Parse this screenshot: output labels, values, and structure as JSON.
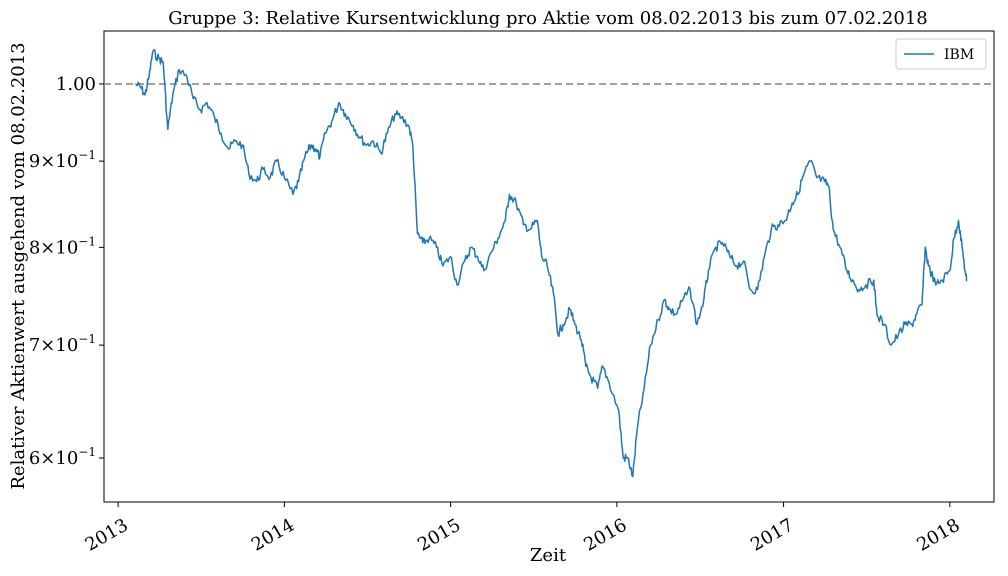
{
  "chart_data": {
    "type": "line",
    "title": "Gruppe 3: Relative Kursentwicklung pro Aktie vom 08.02.2013 bis zum 07.02.2018",
    "xlabel": "Zeit",
    "ylabel": "Relativer Aktienwert ausgehend vom 08.02.2013",
    "yscale": "log",
    "ylim": [
      0.565,
      1.075
    ],
    "xlim": [
      "2012-12-01",
      "2018-04-08"
    ],
    "x_ticks": [
      "2013",
      "2014",
      "2015",
      "2016",
      "2017",
      "2018"
    ],
    "y_ticks": [
      {
        "value": 0.6,
        "label": "6×10",
        "exp": "−1"
      },
      {
        "value": 0.7,
        "label": "7×10",
        "exp": "−1"
      },
      {
        "value": 0.8,
        "label": "8×10",
        "exp": "−1"
      },
      {
        "value": 0.9,
        "label": "9×10",
        "exp": "−1"
      },
      {
        "value": 1.0,
        "label": "1.00",
        "exp": ""
      }
    ],
    "reference_line": {
      "y": 1.0,
      "style": "dashed",
      "color": "#808080"
    },
    "legend": {
      "position": "top-right"
    },
    "grid": false,
    "series": [
      {
        "name": "IBM",
        "color": "#1f77b4",
        "points": [
          [
            "2013-02-08",
            1.0
          ],
          [
            "2013-02-20",
            0.995
          ],
          [
            "2013-03-01",
            0.985
          ],
          [
            "2013-03-10",
            1.01
          ],
          [
            "2013-03-18",
            1.045
          ],
          [
            "2013-04-01",
            1.035
          ],
          [
            "2013-04-10",
            1.03
          ],
          [
            "2013-04-20",
            0.94
          ],
          [
            "2013-05-01",
            0.985
          ],
          [
            "2013-05-15",
            1.02
          ],
          [
            "2013-06-01",
            1.01
          ],
          [
            "2013-06-15",
            0.98
          ],
          [
            "2013-07-01",
            0.965
          ],
          [
            "2013-07-15",
            0.975
          ],
          [
            "2013-08-01",
            0.955
          ],
          [
            "2013-08-15",
            0.935
          ],
          [
            "2013-09-01",
            0.915
          ],
          [
            "2013-09-15",
            0.925
          ],
          [
            "2013-10-01",
            0.92
          ],
          [
            "2013-10-15",
            0.885
          ],
          [
            "2013-11-01",
            0.875
          ],
          [
            "2013-11-15",
            0.89
          ],
          [
            "2013-12-01",
            0.88
          ],
          [
            "2013-12-15",
            0.9
          ],
          [
            "2014-01-01",
            0.88
          ],
          [
            "2014-01-20",
            0.86
          ],
          [
            "2014-02-01",
            0.875
          ],
          [
            "2014-02-15",
            0.905
          ],
          [
            "2014-03-01",
            0.92
          ],
          [
            "2014-03-10",
            0.915
          ],
          [
            "2014-03-20",
            0.905
          ],
          [
            "2014-04-01",
            0.935
          ],
          [
            "2014-04-15",
            0.95
          ],
          [
            "2014-05-01",
            0.975
          ],
          [
            "2014-05-15",
            0.96
          ],
          [
            "2014-06-01",
            0.945
          ],
          [
            "2014-06-15",
            0.93
          ],
          [
            "2014-07-01",
            0.92
          ],
          [
            "2014-07-15",
            0.925
          ],
          [
            "2014-08-01",
            0.91
          ],
          [
            "2014-08-15",
            0.935
          ],
          [
            "2014-09-01",
            0.96
          ],
          [
            "2014-09-15",
            0.955
          ],
          [
            "2014-10-01",
            0.945
          ],
          [
            "2014-10-10",
            0.92
          ],
          [
            "2014-10-20",
            0.815
          ],
          [
            "2014-11-01",
            0.805
          ],
          [
            "2014-11-15",
            0.81
          ],
          [
            "2014-12-01",
            0.8
          ],
          [
            "2014-12-15",
            0.78
          ],
          [
            "2015-01-01",
            0.79
          ],
          [
            "2015-01-15",
            0.76
          ],
          [
            "2015-02-01",
            0.785
          ],
          [
            "2015-02-15",
            0.8
          ],
          [
            "2015-03-01",
            0.79
          ],
          [
            "2015-03-15",
            0.775
          ],
          [
            "2015-04-01",
            0.795
          ],
          [
            "2015-04-15",
            0.81
          ],
          [
            "2015-05-01",
            0.83
          ],
          [
            "2015-05-10",
            0.86
          ],
          [
            "2015-05-25",
            0.85
          ],
          [
            "2015-06-10",
            0.825
          ],
          [
            "2015-06-25",
            0.82
          ],
          [
            "2015-07-10",
            0.83
          ],
          [
            "2015-07-20",
            0.79
          ],
          [
            "2015-08-01",
            0.78
          ],
          [
            "2015-08-15",
            0.75
          ],
          [
            "2015-08-25",
            0.71
          ],
          [
            "2015-09-05",
            0.72
          ],
          [
            "2015-09-20",
            0.735
          ],
          [
            "2015-10-01",
            0.72
          ],
          [
            "2015-10-15",
            0.705
          ],
          [
            "2015-10-25",
            0.68
          ],
          [
            "2015-11-05",
            0.67
          ],
          [
            "2015-11-20",
            0.66
          ],
          [
            "2015-12-01",
            0.68
          ],
          [
            "2015-12-15",
            0.665
          ],
          [
            "2016-01-05",
            0.64
          ],
          [
            "2016-01-15",
            0.6
          ],
          [
            "2016-01-25",
            0.6
          ],
          [
            "2016-02-05",
            0.585
          ],
          [
            "2016-02-15",
            0.625
          ],
          [
            "2016-03-01",
            0.66
          ],
          [
            "2016-03-15",
            0.7
          ],
          [
            "2016-04-01",
            0.725
          ],
          [
            "2016-04-15",
            0.745
          ],
          [
            "2016-04-25",
            0.735
          ],
          [
            "2016-05-10",
            0.73
          ],
          [
            "2016-05-25",
            0.745
          ],
          [
            "2016-06-10",
            0.755
          ],
          [
            "2016-06-25",
            0.72
          ],
          [
            "2016-07-10",
            0.745
          ],
          [
            "2016-07-20",
            0.775
          ],
          [
            "2016-08-05",
            0.8
          ],
          [
            "2016-08-20",
            0.805
          ],
          [
            "2016-09-05",
            0.79
          ],
          [
            "2016-09-20",
            0.78
          ],
          [
            "2016-10-05",
            0.785
          ],
          [
            "2016-10-20",
            0.755
          ],
          [
            "2016-11-05",
            0.755
          ],
          [
            "2016-11-20",
            0.79
          ],
          [
            "2016-12-05",
            0.82
          ],
          [
            "2016-12-20",
            0.825
          ],
          [
            "2017-01-05",
            0.83
          ],
          [
            "2017-01-20",
            0.85
          ],
          [
            "2017-02-01",
            0.86
          ],
          [
            "2017-02-15",
            0.885
          ],
          [
            "2017-03-01",
            0.9
          ],
          [
            "2017-03-15",
            0.88
          ],
          [
            "2017-04-01",
            0.875
          ],
          [
            "2017-04-10",
            0.87
          ],
          [
            "2017-04-20",
            0.82
          ],
          [
            "2017-05-05",
            0.8
          ],
          [
            "2017-05-20",
            0.775
          ],
          [
            "2017-06-01",
            0.765
          ],
          [
            "2017-06-15",
            0.755
          ],
          [
            "2017-07-01",
            0.76
          ],
          [
            "2017-07-18",
            0.765
          ],
          [
            "2017-07-25",
            0.73
          ],
          [
            "2017-08-10",
            0.72
          ],
          [
            "2017-08-25",
            0.7
          ],
          [
            "2017-09-10",
            0.71
          ],
          [
            "2017-09-25",
            0.72
          ],
          [
            "2017-10-10",
            0.72
          ],
          [
            "2017-10-20",
            0.73
          ],
          [
            "2017-11-01",
            0.74
          ],
          [
            "2017-11-08",
            0.8
          ],
          [
            "2017-11-15",
            0.78
          ],
          [
            "2017-12-01",
            0.76
          ],
          [
            "2017-12-15",
            0.765
          ],
          [
            "2018-01-01",
            0.775
          ],
          [
            "2018-01-10",
            0.81
          ],
          [
            "2018-01-20",
            0.83
          ],
          [
            "2018-01-28",
            0.8
          ],
          [
            "2018-02-05",
            0.77
          ],
          [
            "2018-02-07",
            0.765
          ]
        ]
      }
    ]
  }
}
